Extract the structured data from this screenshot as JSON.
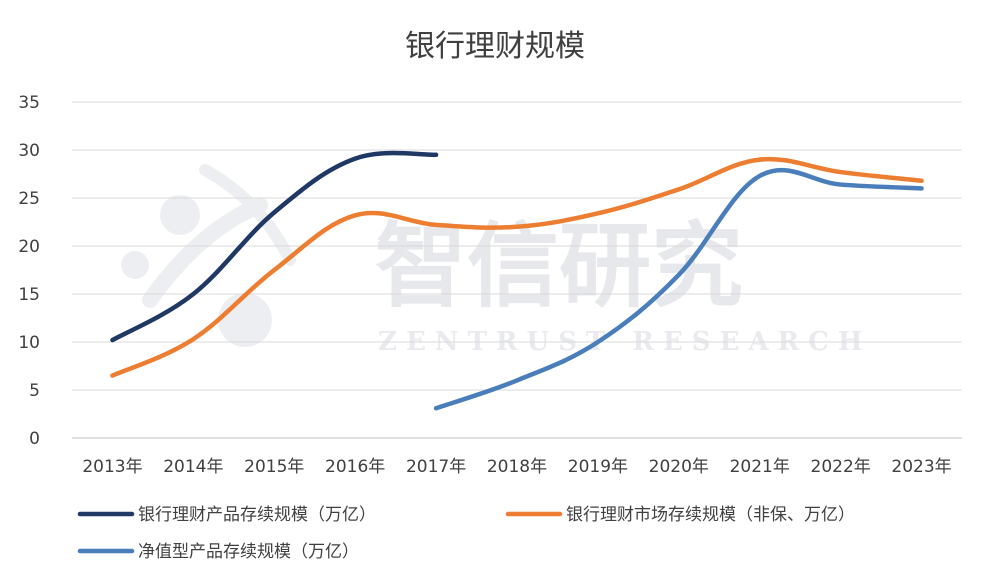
{
  "chart_data": {
    "type": "line",
    "title": "银行理财规模",
    "categories": [
      "2013年",
      "2014年",
      "2015年",
      "2016年",
      "2017年",
      "2018年",
      "2019年",
      "2020年",
      "2021年",
      "2022年",
      "2023年"
    ],
    "series": [
      {
        "name": "银行理财产品存续规模（万亿）",
        "color": "#1f3864",
        "values": [
          10.2,
          15.0,
          23.5,
          29.1,
          29.5,
          null,
          null,
          null,
          null,
          null,
          null
        ]
      },
      {
        "name": "银行理财市场存续规模（非保、万亿）",
        "color": "#ed7d31",
        "values": [
          6.5,
          10.3,
          17.5,
          23.2,
          22.2,
          22.0,
          23.4,
          25.9,
          29.0,
          27.7,
          26.8
        ]
      },
      {
        "name": "净值型产品存续规模（万亿）",
        "color": "#4a7ebb",
        "values": [
          null,
          null,
          null,
          null,
          3.1,
          6.0,
          10.0,
          17.0,
          27.3,
          26.4,
          26.0
        ]
      }
    ],
    "ylim": [
      0,
      35
    ],
    "yticks": [
      0,
      5,
      10,
      15,
      20,
      25,
      30,
      35
    ],
    "grid": true,
    "legend_position": "bottom"
  },
  "watermark": {
    "cn": "智信研究",
    "en": "ZENTRUST RESEARCH"
  }
}
